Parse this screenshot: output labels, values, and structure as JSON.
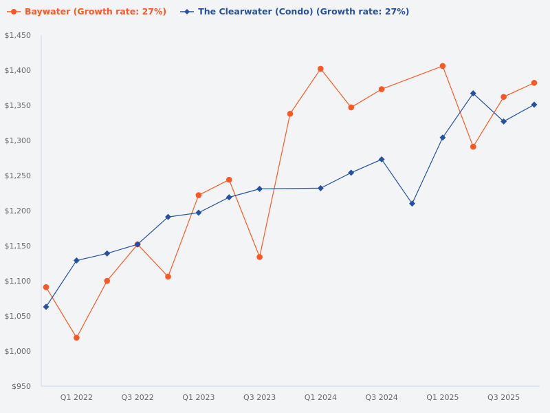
{
  "chart_data": {
    "type": "line",
    "title": "",
    "xlabel": "",
    "ylabel": "",
    "categories": [
      "Q4 2021",
      "Q1 2022",
      "Q2 2022",
      "Q3 2022",
      "Q4 2022",
      "Q1 2023",
      "Q2 2023",
      "Q3 2023",
      "Q4 2023",
      "Q1 2024",
      "Q2 2024",
      "Q3 2024",
      "Q4 2024",
      "Q1 2025",
      "Q2 2025",
      "Q3 2025",
      "Q4 2025"
    ],
    "x_tick_labels": [
      "Q1 2022",
      "Q3 2022",
      "Q1 2023",
      "Q3 2023",
      "Q1 2024",
      "Q3 2024",
      "Q1 2025",
      "Q3 2025"
    ],
    "y_tick_labels": [
      "$950",
      "$1,000",
      "$1,050",
      "$1,100",
      "$1,150",
      "$1,200",
      "$1,250",
      "$1,300",
      "$1,350",
      "$1,400",
      "$1,450"
    ],
    "ylim": [
      950,
      1450
    ],
    "grid": false,
    "legend_position": "top-left",
    "series": [
      {
        "name": "Baywater (Growth rate: 27%)",
        "color": "#ff5722",
        "marker": "circle",
        "values": [
          1091,
          1019,
          1100,
          1152,
          1106,
          1222,
          1244,
          1134,
          1338,
          1402,
          1347,
          1373,
          null,
          1406,
          1291,
          1362,
          1382
        ]
      },
      {
        "name": "The Clearwater (Condo) (Growth rate: 27%)",
        "color": "#2451a3",
        "marker": "diamond",
        "values": [
          1063,
          1129,
          1139,
          1152,
          1191,
          1197,
          1219,
          1231,
          null,
          1232,
          1254,
          1273,
          1210,
          1304,
          1367,
          1327,
          1351
        ]
      }
    ]
  }
}
